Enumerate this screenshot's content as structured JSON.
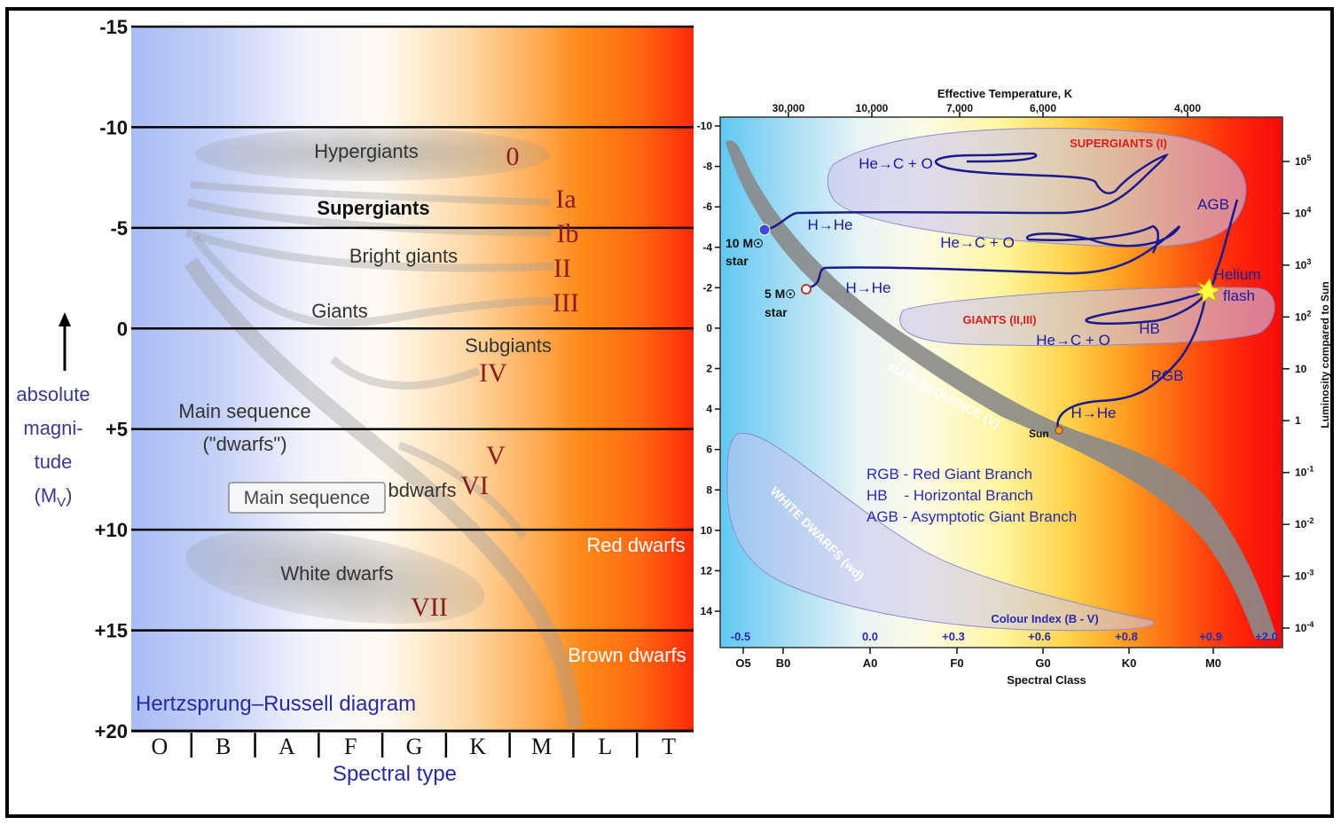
{
  "left_panel": {
    "title": "Hertzsprung–Russell diagram",
    "y_axis": {
      "label_lines": [
        "absolute",
        "magni-",
        "tude"
      ],
      "label_symbol": "(M",
      "label_sub": "V",
      "label_close": ")",
      "ticks": [
        "-15",
        "-10",
        "-5",
        "0",
        "+5",
        "+10",
        "+15",
        "+20"
      ]
    },
    "x_axis": {
      "label": "Spectral type",
      "classes": [
        "O",
        "B",
        "A",
        "F",
        "G",
        "K",
        "M",
        "L",
        "T"
      ]
    },
    "regions": {
      "hypergiants": "Hypergiants",
      "supergiants": "Supergiants",
      "bright_giants": "Bright giants",
      "giants": "Giants",
      "subgiants": "Subgiants",
      "main_sequence": "Main sequence",
      "dwarfs": "(\"dwarfs\")",
      "subdwarfs_fragment": "bdwarfs",
      "white_dwarfs": "White dwarfs",
      "red_dwarfs": "Red dwarfs",
      "brown_dwarfs": "Brown dwarfs"
    },
    "luminosity_classes": [
      "0",
      "Ia",
      "Ib",
      "II",
      "III",
      "IV",
      "V",
      "VI",
      "VII"
    ],
    "tooltip": "Main sequence"
  },
  "right_panel": {
    "top_axis": {
      "title": "Effective Temperature, K",
      "ticks": [
        "30,000",
        "10,000",
        "7,000",
        "6,000",
        "4,000"
      ]
    },
    "left_ticks": [
      "-10",
      "-8",
      "-6",
      "-4",
      "-2",
      "0",
      "2",
      "4",
      "6",
      "8",
      "10",
      "12",
      "14"
    ],
    "right_axis": {
      "label": "Luminosity compared to Sun",
      "ticks": [
        {
          "base": "10",
          "exp": "5"
        },
        {
          "base": "10",
          "exp": "4"
        },
        {
          "base": "10",
          "exp": "3"
        },
        {
          "base": "10",
          "exp": "2"
        },
        {
          "base": "10",
          "exp": ""
        },
        {
          "base": "1",
          "exp": ""
        },
        {
          "base": "10",
          "exp": "-1"
        },
        {
          "base": "10",
          "exp": "-2"
        },
        {
          "base": "10",
          "exp": "-3"
        },
        {
          "base": "10",
          "exp": "-4"
        }
      ]
    },
    "bottom_axis": {
      "title": "Spectral Class",
      "classes": [
        "O5",
        "B0",
        "A0",
        "F0",
        "G0",
        "K0",
        "M0"
      ]
    },
    "colour_index": {
      "title": "Colour Index (B - V)",
      "values": [
        "-0.5",
        "0.0",
        "+0.3",
        "+0.6",
        "+0.8",
        "+0.9",
        "+2.0"
      ]
    },
    "regions": {
      "supergiants": "SUPERGIANTS (I)",
      "giants": "GIANTS (II,III)",
      "main_sequence": "MAIN SEQUENCE (V)",
      "white_dwarfs": "WHITE DWARFS (wd)"
    },
    "tracks": {
      "heco_top": "He→C + O",
      "hhe_10": "H→He",
      "heco_mid": "He→C + O",
      "hhe_5": "H→He",
      "agb": "AGB",
      "helium_flash_1": "Helium",
      "helium_flash_2": "flash",
      "hb": "HB",
      "heco_giant": "He→C + O",
      "rgb": "RGB",
      "hhe_sun": "H→He"
    },
    "stars": {
      "ten_mass": "10 M",
      "ten_star": "star",
      "five_mass": "5 M",
      "five_star": "star",
      "sun": "Sun"
    },
    "legend": [
      "RGB - Red Giant Branch",
      "HB    - Horizontal Branch",
      "AGB - Asymptotic Giant Branch"
    ]
  }
}
